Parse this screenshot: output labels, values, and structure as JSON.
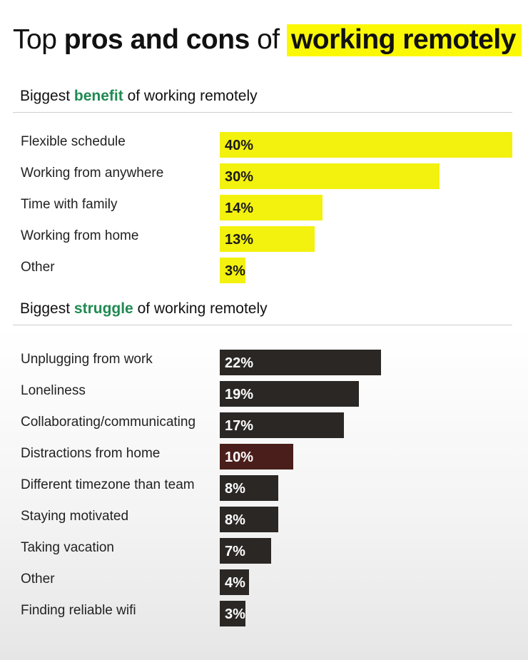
{
  "title": {
    "part1": "Top ",
    "part2": "pros and cons",
    "part3": " of ",
    "part4": "working remotely"
  },
  "colors": {
    "highlight": "#fbf806",
    "accent_green": "#1f8a52",
    "benefit_bar": "#f3f10e",
    "struggle_bar": "#2b2725"
  },
  "chart_data": [
    {
      "type": "bar",
      "orientation": "horizontal",
      "title": {
        "prefix": "Biggest ",
        "highlight": "benefit",
        "suffix": " of working remotely"
      },
      "categories": [
        "Flexible schedule",
        "Working from anywhere",
        "Time with family",
        "Working from home",
        "Other"
      ],
      "values": [
        40,
        30,
        14,
        13,
        3
      ],
      "value_labels": [
        "40%",
        "30%",
        "14%",
        "13%",
        "3%"
      ],
      "unit": "%",
      "xlim": [
        0,
        40
      ]
    },
    {
      "type": "bar",
      "orientation": "horizontal",
      "title": {
        "prefix": "Biggest ",
        "highlight": "struggle",
        "suffix": " of working remotely"
      },
      "categories": [
        "Unplugging from work",
        "Loneliness",
        "Collaborating/communicating",
        "Distractions from home",
        "Different timezone than team",
        "Staying motivated",
        "Taking vacation",
        "Other",
        "Finding reliable wifi"
      ],
      "values": [
        22,
        19,
        17,
        10,
        8,
        8,
        7,
        4,
        3
      ],
      "value_labels": [
        "22%",
        "19%",
        "17%",
        "10%",
        "8%",
        "8%",
        "7%",
        "4%",
        "3%"
      ],
      "unit": "%",
      "xlim": [
        0,
        40
      ]
    }
  ]
}
